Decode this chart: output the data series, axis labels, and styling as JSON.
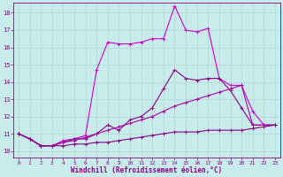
{
  "xlabel": "Windchill (Refroidissement éolien,°C)",
  "bg_color": "#c8ecec",
  "grid_color": "#b0d8d8",
  "ylim": [
    9.6,
    18.6
  ],
  "xlim": [
    -0.5,
    23.5
  ],
  "yticks": [
    10,
    11,
    12,
    13,
    14,
    15,
    16,
    17,
    18
  ],
  "xticks": [
    0,
    1,
    2,
    3,
    4,
    5,
    6,
    7,
    8,
    9,
    10,
    11,
    12,
    13,
    14,
    15,
    16,
    17,
    18,
    19,
    20,
    21,
    22,
    23
  ],
  "curve_peaked_x": [
    0,
    1,
    2,
    3,
    4,
    5,
    6,
    7,
    8,
    9,
    10,
    11,
    12,
    13,
    14,
    15,
    16,
    17,
    18,
    19,
    20,
    21,
    22,
    23
  ],
  "curve_peaked_y": [
    11.0,
    10.7,
    10.3,
    10.3,
    10.6,
    10.7,
    10.9,
    14.7,
    16.3,
    16.2,
    16.2,
    16.3,
    16.5,
    16.5,
    18.4,
    17.0,
    16.9,
    17.1,
    14.2,
    13.8,
    13.8,
    12.3,
    11.5,
    11.5
  ],
  "curve_mid_x": [
    0,
    1,
    2,
    3,
    4,
    5,
    6,
    7,
    8,
    9,
    10,
    11,
    12,
    13,
    14,
    15,
    16,
    17,
    18,
    19,
    20,
    21,
    22,
    23
  ],
  "curve_mid_y": [
    11.0,
    10.7,
    10.3,
    10.3,
    10.5,
    10.7,
    10.7,
    11.0,
    11.5,
    11.2,
    11.8,
    12.0,
    12.5,
    13.6,
    14.7,
    14.2,
    14.1,
    14.2,
    14.2,
    13.5,
    12.5,
    11.5,
    11.5,
    11.5
  ],
  "curve_diag_x": [
    0,
    1,
    2,
    3,
    4,
    5,
    6,
    7,
    8,
    9,
    10,
    11,
    12,
    13,
    14,
    15,
    16,
    17,
    18,
    19,
    20,
    21,
    22,
    23
  ],
  "curve_diag_y": [
    11.0,
    10.7,
    10.3,
    10.3,
    10.5,
    10.6,
    10.8,
    11.0,
    11.2,
    11.4,
    11.6,
    11.8,
    12.0,
    12.3,
    12.6,
    12.8,
    13.0,
    13.2,
    13.4,
    13.6,
    13.8,
    11.5,
    11.5,
    11.5
  ],
  "curve_bottom_x": [
    0,
    1,
    2,
    3,
    4,
    5,
    6,
    7,
    8,
    9,
    10,
    11,
    12,
    13,
    14,
    15,
    16,
    17,
    18,
    19,
    20,
    21,
    22,
    23
  ],
  "curve_bottom_y": [
    11.0,
    10.7,
    10.3,
    10.3,
    10.3,
    10.4,
    10.4,
    10.5,
    10.5,
    10.6,
    10.7,
    10.8,
    10.9,
    11.0,
    11.1,
    11.1,
    11.1,
    11.2,
    11.2,
    11.2,
    11.2,
    11.3,
    11.4,
    11.5
  ],
  "color_bright": "#cc00cc",
  "color_dark": "#880088",
  "color_mid": "#aa00aa"
}
